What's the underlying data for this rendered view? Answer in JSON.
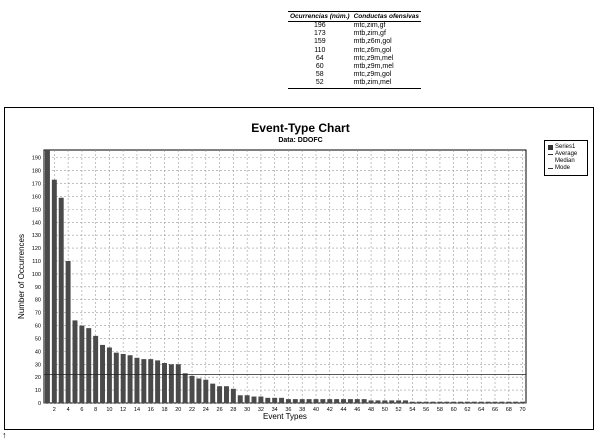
{
  "table": {
    "headers": [
      "Ocurrencias (núm.)",
      "Conductas ofensivas"
    ],
    "rows": [
      [
        "196",
        "mtc,zim,gf"
      ],
      [
        "173",
        "mtb,zim,gf"
      ],
      [
        "159",
        "mtb,z6m,gol"
      ],
      [
        "110",
        "mtc,z6m,gol"
      ],
      [
        "64",
        "mtc,z9m,mel"
      ],
      [
        "60",
        "mtb,z9m,mel"
      ],
      [
        "58",
        "mtc,z9m,gol"
      ],
      [
        "52",
        "mtb,zim,mel"
      ]
    ]
  },
  "chart_data": {
    "type": "bar",
    "title": "Event-Type Chart",
    "subtitle": "Data: DDOFC",
    "xlabel": "Event Types",
    "ylabel": "Number of Occurrences",
    "ylim": [
      0,
      196
    ],
    "yticks": [
      0,
      10,
      20,
      30,
      40,
      50,
      60,
      70,
      80,
      90,
      100,
      110,
      120,
      130,
      140,
      150,
      160,
      170,
      180,
      190
    ],
    "xlim": [
      0.5,
      70.5
    ],
    "xticks": [
      2,
      4,
      6,
      8,
      10,
      12,
      14,
      16,
      18,
      20,
      22,
      24,
      26,
      28,
      30,
      32,
      34,
      36,
      38,
      40,
      42,
      44,
      46,
      48,
      50,
      52,
      54,
      56,
      58,
      60,
      62,
      64,
      66,
      68,
      70
    ],
    "grid": true,
    "legend_placement": "right",
    "legend": [
      "Series1",
      "Average",
      "Median",
      "Mode"
    ],
    "average_line": 22,
    "series": [
      {
        "name": "Series1",
        "x": [
          1,
          2,
          3,
          4,
          5,
          6,
          7,
          8,
          9,
          10,
          11,
          12,
          13,
          14,
          15,
          16,
          17,
          18,
          19,
          20,
          21,
          22,
          23,
          24,
          25,
          26,
          27,
          28,
          29,
          30,
          31,
          32,
          33,
          34,
          35,
          36,
          37,
          38,
          39,
          40,
          41,
          42,
          43,
          44,
          45,
          46,
          47,
          48,
          49,
          50,
          51,
          52,
          53,
          54,
          55,
          56,
          57,
          58,
          59,
          60,
          61,
          62,
          63,
          64,
          65,
          66,
          67,
          68,
          69,
          70
        ],
        "values": [
          196,
          173,
          159,
          110,
          64,
          60,
          58,
          52,
          45,
          43,
          39,
          38,
          37,
          35,
          34,
          34,
          33,
          31,
          30,
          30,
          23,
          21,
          19,
          18,
          15,
          13,
          13,
          11,
          6,
          6,
          5,
          5,
          4,
          4,
          4,
          3,
          3,
          3,
          3,
          3,
          3,
          3,
          3,
          3,
          3,
          3,
          3,
          2,
          2,
          2,
          2,
          2,
          2,
          1,
          1,
          1,
          1,
          1,
          1,
          1,
          1,
          1,
          1,
          1,
          1,
          1,
          1,
          1,
          1,
          1
        ]
      }
    ],
    "colors": {
      "bar": "#4a4a4a",
      "grid": "#9a9a9a",
      "average": "#222222"
    }
  },
  "footer_glyph": "↑"
}
